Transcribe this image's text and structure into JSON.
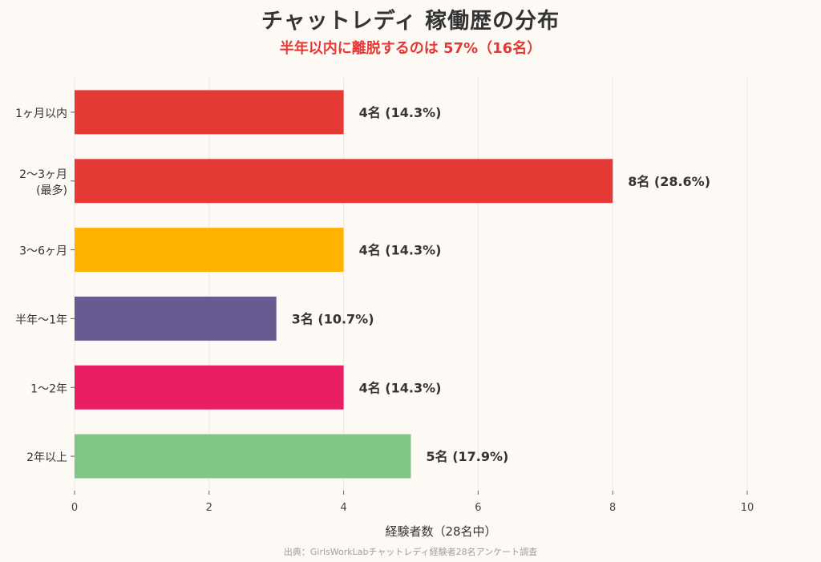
{
  "title": "チャットレディ 稼働歴の分布",
  "subtitle": "半年以内に離脱するのは 57%（16名）",
  "source": "出典：GirlsWorkLabチャットレディ経験者28名アンケート調査",
  "chart_data": {
    "type": "bar",
    "orientation": "horizontal",
    "categories": [
      [
        "1ヶ月以内"
      ],
      [
        "2〜3ヶ月",
        "(最多)"
      ],
      [
        "3〜6ヶ月"
      ],
      [
        "半年〜1年"
      ],
      [
        "1〜2年"
      ],
      [
        "2年以上"
      ]
    ],
    "values": [
      4,
      8,
      4,
      3,
      4,
      5
    ],
    "data_labels": [
      "4名 (14.3%)",
      "8名 (28.6%)",
      "4名 (14.3%)",
      "3名 (10.7%)",
      "4名 (14.3%)",
      "5名 (17.9%)"
    ],
    "colors": [
      "#e53935",
      "#e53935",
      "#ffb300",
      "#6a5a92",
      "#e91e63",
      "#81c784"
    ],
    "xlabel": "経験者数（28名中）",
    "xlim": [
      0,
      10
    ],
    "xticks": [
      0,
      2,
      4,
      6,
      8,
      10
    ],
    "grid": true
  }
}
